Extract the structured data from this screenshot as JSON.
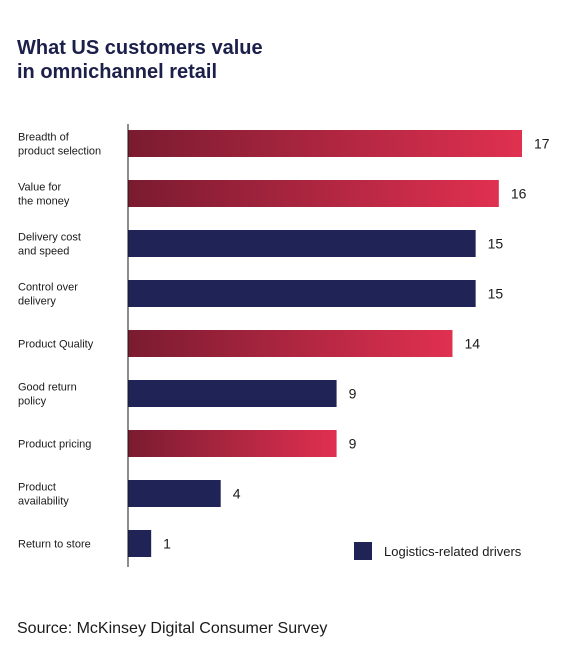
{
  "title_lines": [
    "What US customers value",
    "in omnichannel retail"
  ],
  "source": "Source: McKinsey Digital Consumer Survey",
  "legend": {
    "label": "Logistics-related drivers",
    "color": "#1f2356"
  },
  "colors": {
    "logistics": "#1f2356",
    "gradient_start": "#7a1b30",
    "gradient_end": "#e03050"
  },
  "chart_data": {
    "type": "bar",
    "orientation": "horizontal",
    "title": "What US customers value in omnichannel retail",
    "xlim": [
      0,
      17
    ],
    "categories": [
      [
        "Breadth of",
        "product selection"
      ],
      [
        "Value for",
        "the money"
      ],
      [
        "Delivery cost",
        "and speed"
      ],
      [
        "Control over",
        "delivery"
      ],
      [
        "Product Quality"
      ],
      [
        "Good return",
        "policy"
      ],
      [
        "Product pricing"
      ],
      [
        "Product",
        "availability"
      ],
      [
        "Return to store"
      ]
    ],
    "values": [
      17,
      16,
      15,
      15,
      14,
      9,
      9,
      4,
      1
    ],
    "logistics_related": [
      false,
      false,
      true,
      true,
      false,
      true,
      false,
      true,
      true
    ]
  }
}
